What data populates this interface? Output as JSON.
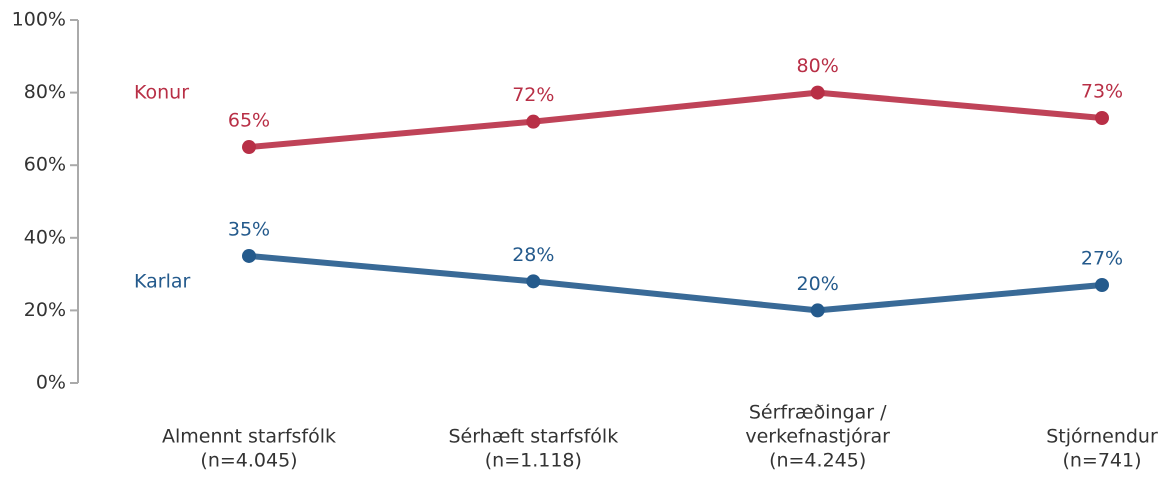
{
  "chart_data": {
    "type": "line",
    "categories": [
      [
        "Almennt starfsfólk",
        "(n=4.045)"
      ],
      [
        "Sérhæft starfsfólk",
        "(n=1.118)"
      ],
      [
        "Sérfræðingar /",
        "verkefnastjórar",
        "(n=4.245)"
      ],
      [
        "Stjórnendur",
        "(n=741)"
      ]
    ],
    "series": [
      {
        "name": "Konur",
        "color": "#b82f46",
        "values": [
          65,
          72,
          80,
          73
        ],
        "value_labels": [
          "65%",
          "72%",
          "80%",
          "73%"
        ]
      },
      {
        "name": "Karlar",
        "color": "#245a8c",
        "values": [
          35,
          28,
          20,
          27
        ],
        "value_labels": [
          "35%",
          "28%",
          "20%",
          "27%"
        ]
      }
    ],
    "ylim": [
      0,
      100
    ],
    "yticks": [
      {
        "value": 0,
        "label": "0%"
      },
      {
        "value": 20,
        "label": "20%"
      },
      {
        "value": 40,
        "label": "40%"
      },
      {
        "value": 60,
        "label": "60%"
      },
      {
        "value": 80,
        "label": "80%"
      },
      {
        "value": 100,
        "label": "100%"
      }
    ],
    "grid": false
  }
}
